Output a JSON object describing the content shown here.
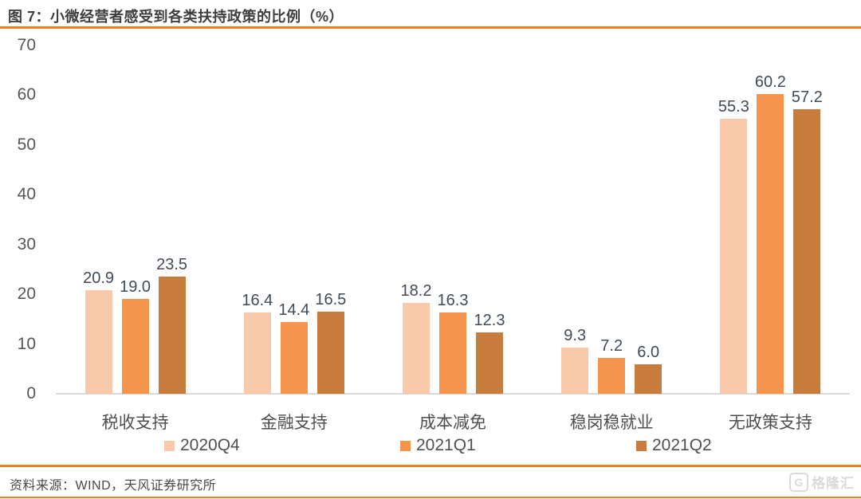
{
  "header": {
    "title": "图 7：小微经营者感受到各类扶持政策的比例（%）"
  },
  "colors": {
    "accent_line": "#F07D22",
    "axis_line": "#D9D9D9",
    "series_2020Q4": "#F8C9AB",
    "series_2021Q1": "#F5954D",
    "series_2021Q2": "#C87D3F"
  },
  "chart_data": {
    "type": "bar",
    "title": "图 7：小微经营者感受到各类扶持政策的比例（%）",
    "categories": [
      "税收支持",
      "金融支持",
      "成本减免",
      "稳岗稳就业",
      "无政策支持"
    ],
    "series": [
      {
        "name": "2020Q4",
        "color": "#F8C9AB",
        "values": [
          20.9,
          16.4,
          18.2,
          9.3,
          55.3
        ]
      },
      {
        "name": "2021Q1",
        "color": "#F5954D",
        "values": [
          19.0,
          14.4,
          16.3,
          7.2,
          60.2
        ]
      },
      {
        "name": "2021Q2",
        "color": "#C87D3F",
        "values": [
          23.5,
          16.5,
          12.3,
          6.0,
          57.2
        ]
      }
    ],
    "ylim": [
      0,
      70
    ],
    "yticks": [
      0,
      10,
      20,
      30,
      40,
      50,
      60,
      70
    ],
    "grid": false,
    "legend_position": "bottom",
    "value_labels": true,
    "xlabel": "",
    "ylabel": ""
  },
  "footer": {
    "source": "资料来源：WIND，天风证券研究所",
    "logo_icon": "G",
    "logo_text": "格隆汇"
  }
}
